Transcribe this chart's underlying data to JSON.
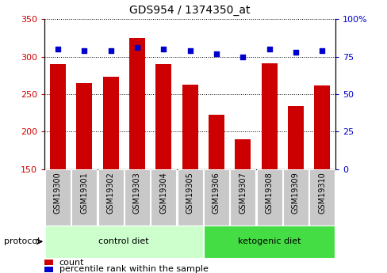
{
  "title": "GDS954 / 1374350_at",
  "samples": [
    "GSM19300",
    "GSM19301",
    "GSM19302",
    "GSM19303",
    "GSM19304",
    "GSM19305",
    "GSM19306",
    "GSM19307",
    "GSM19308",
    "GSM19309",
    "GSM19310"
  ],
  "counts": [
    290,
    265,
    273,
    325,
    290,
    263,
    223,
    190,
    291,
    234,
    262
  ],
  "percentile_ranks": [
    80,
    79,
    79,
    81,
    80,
    79,
    77,
    75,
    80,
    78,
    79
  ],
  "ylim_left": [
    150,
    350
  ],
  "ylim_right": [
    0,
    100
  ],
  "yticks_left": [
    150,
    200,
    250,
    300,
    350
  ],
  "yticks_right": [
    0,
    25,
    50,
    75,
    100
  ],
  "bar_color": "#cc0000",
  "dot_color": "#0000cc",
  "grid_color": "#000000",
  "protocol_groups": [
    {
      "label": "control diet",
      "indices": [
        0,
        1,
        2,
        3,
        4,
        5
      ],
      "color": "#ccffcc"
    },
    {
      "label": "ketogenic diet",
      "indices": [
        6,
        7,
        8,
        9,
        10
      ],
      "color": "#44dd44"
    }
  ],
  "bg_color": "#ffffff",
  "plot_bg_color": "#ffffff",
  "tick_bg_color": "#c8c8c8",
  "protocol_label": "protocol",
  "legend_count_label": "count",
  "legend_percentile_label": "percentile rank within the sample",
  "title_fontsize": 10,
  "tick_fontsize": 8,
  "label_fontsize": 7,
  "protocol_fontsize": 8,
  "legend_fontsize": 8
}
